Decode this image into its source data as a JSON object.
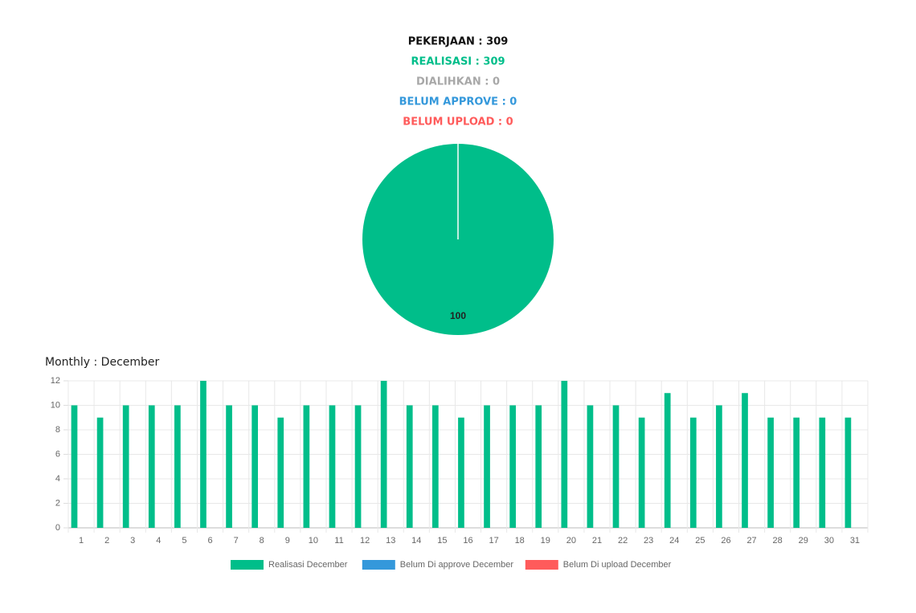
{
  "summary": [
    {
      "text": "PEKERJAAN : 309",
      "color": "#111111"
    },
    {
      "text": "REALISASI : 309",
      "color": "#00be8a"
    },
    {
      "text": "DIALIHKAN : 0",
      "color": "#a8a8a8"
    },
    {
      "text": "BELUM APPROVE : 0",
      "color": "#3498db"
    },
    {
      "text": "BELUM UPLOAD : 0",
      "color": "#ff5b5b"
    }
  ],
  "chart_data": [
    {
      "type": "pie",
      "values": [
        100
      ],
      "colors": [
        "#00be8a"
      ]
    },
    {
      "type": "bar",
      "title": "Monthly : December",
      "categories": [
        "1",
        "2",
        "3",
        "4",
        "5",
        "6",
        "7",
        "8",
        "9",
        "10",
        "11",
        "12",
        "13",
        "14",
        "15",
        "16",
        "17",
        "18",
        "19",
        "20",
        "21",
        "22",
        "23",
        "24",
        "25",
        "26",
        "27",
        "28",
        "29",
        "30",
        "31"
      ],
      "series": [
        {
          "name": "Realisasi December",
          "color": "#00be8a",
          "values": [
            10,
            9,
            10,
            10,
            10,
            12,
            10,
            10,
            9,
            10,
            10,
            10,
            12,
            10,
            10,
            9,
            10,
            10,
            10,
            12,
            10,
            10,
            9,
            11,
            9,
            10,
            11,
            9,
            9,
            9,
            9
          ]
        },
        {
          "name": "Belum Di approve December",
          "color": "#3498db",
          "values": [
            0,
            0,
            0,
            0,
            0,
            0,
            0,
            0,
            0,
            0,
            0,
            0,
            0,
            0,
            0,
            0,
            0,
            0,
            0,
            0,
            0,
            0,
            0,
            0,
            0,
            0,
            0,
            0,
            0,
            0,
            0
          ]
        },
        {
          "name": "Belum Di upload December",
          "color": "#ff5b5b",
          "values": [
            0,
            0,
            0,
            0,
            0,
            0,
            0,
            0,
            0,
            0,
            0,
            0,
            0,
            0,
            0,
            0,
            0,
            0,
            0,
            0,
            0,
            0,
            0,
            0,
            0,
            0,
            0,
            0,
            0,
            0,
            0
          ]
        }
      ],
      "ylim": [
        0,
        12
      ],
      "yticks": [
        0,
        2,
        4,
        6,
        8,
        10,
        12
      ],
      "grid": true
    }
  ]
}
